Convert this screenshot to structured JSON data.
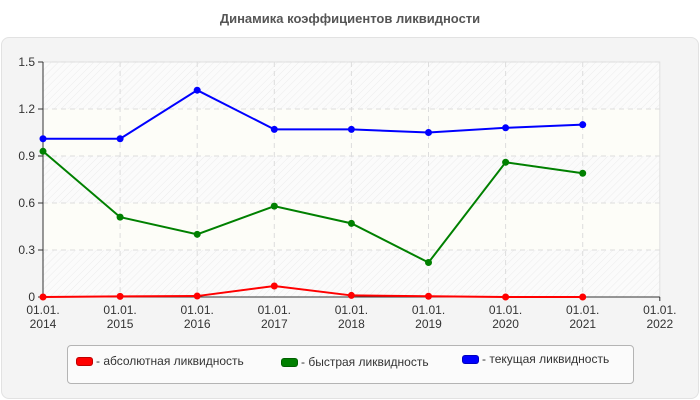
{
  "title": "Динамика коэффициентов ликвидности",
  "colors": {
    "absolute": "#ff0000",
    "quick": "#008000",
    "current": "#0000ff",
    "grid": "#dddddd",
    "panel_bg": "#f4f4f4"
  },
  "legend": {
    "items": [
      {
        "label": "- абсолютная ликвидность",
        "color": "#ff0000"
      },
      {
        "label": "- быстрая ликвидность",
        "color": "#008000"
      },
      {
        "label": "- текущая ликвидность",
        "color": "#0000ff"
      }
    ]
  },
  "axes": {
    "y_ticks": [
      "1.5",
      "1.2",
      "0.9",
      "0.6",
      "0.3",
      "0"
    ],
    "x_ticks": [
      {
        "line1": "01.01.",
        "line2": "2014"
      },
      {
        "line1": "01.01.",
        "line2": "2015"
      },
      {
        "line1": "01.01.",
        "line2": "2016"
      },
      {
        "line1": "01.01.",
        "line2": "2017"
      },
      {
        "line1": "01.01.",
        "line2": "2018"
      },
      {
        "line1": "01.01.",
        "line2": "2019"
      },
      {
        "line1": "01.01.",
        "line2": "2020"
      },
      {
        "line1": "01.01.",
        "line2": "2021"
      },
      {
        "line1": "01.01.",
        "line2": "2022"
      }
    ]
  },
  "chart_data": {
    "type": "line",
    "title": "Динамика коэффициентов ликвидности",
    "xlabel": "",
    "ylabel": "",
    "ylim": [
      0,
      1.5
    ],
    "yticks": [
      0,
      0.3,
      0.6,
      0.9,
      1.2,
      1.5
    ],
    "grid": true,
    "legend_position": "bottom",
    "categories": [
      "01.01.2014",
      "01.01.2015",
      "01.01.2016",
      "01.01.2017",
      "01.01.2018",
      "01.01.2019",
      "01.01.2020",
      "01.01.2021",
      "01.01.2022"
    ],
    "series": [
      {
        "name": "абсолютная ликвидность",
        "color": "#ff0000",
        "values": [
          0.0,
          0.004,
          0.006,
          0.07,
          0.01,
          0.005,
          0.0,
          0.0,
          null
        ]
      },
      {
        "name": "быстрая ликвидность",
        "color": "#008000",
        "values": [
          0.93,
          0.51,
          0.4,
          0.58,
          0.47,
          0.22,
          0.86,
          0.79,
          null
        ]
      },
      {
        "name": "текущая ликвидность",
        "color": "#0000ff",
        "values": [
          1.01,
          1.01,
          1.32,
          1.07,
          1.07,
          1.05,
          1.08,
          1.1,
          null
        ]
      }
    ]
  }
}
